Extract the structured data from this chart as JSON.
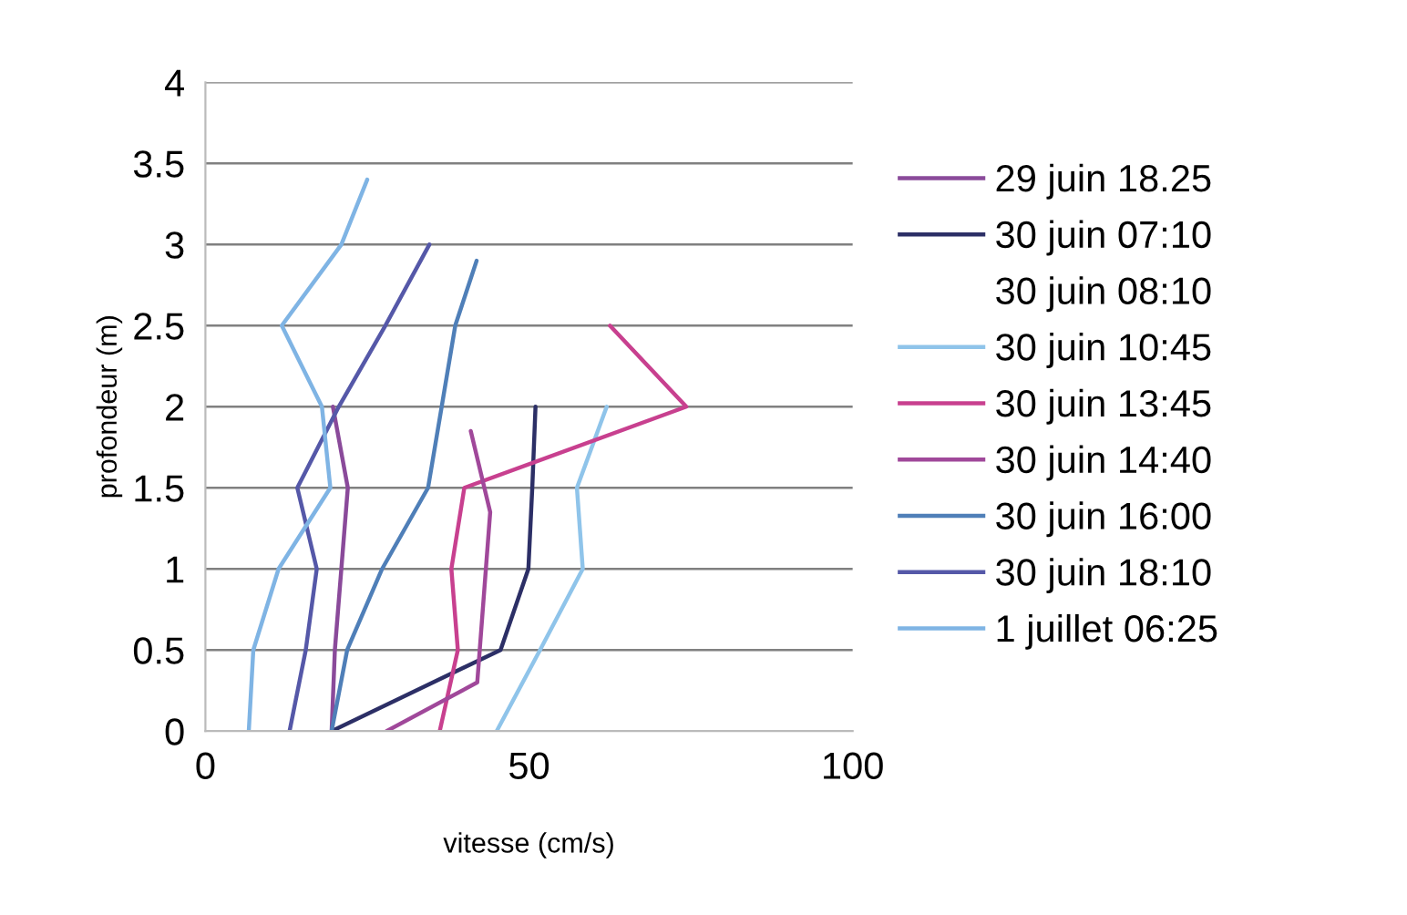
{
  "chart_data": {
    "type": "line",
    "xlabel": "vitesse (cm/s)",
    "ylabel": "profondeur (m)",
    "xlim": [
      0,
      100
    ],
    "xticks": [
      0,
      50,
      100
    ],
    "ylim": [
      0,
      4
    ],
    "yticks": [
      0,
      0.5,
      1,
      1.5,
      2,
      2.5,
      3,
      3.5,
      4
    ],
    "grid": "y",
    "legend": "right",
    "marker": "none",
    "line_style": "solid",
    "series": [
      {
        "name": "29 juin 18.25",
        "color": "#8a4a9a",
        "x": [
          19.5,
          20,
          21,
          22,
          19.7
        ],
        "values": [
          0,
          0.5,
          1,
          1.5,
          2
        ]
      },
      {
        "name": "30 juin 07:10",
        "color": "#2c2f66",
        "x": [
          19.5,
          45.6,
          49.9,
          50.5,
          51
        ],
        "values": [
          0,
          0.5,
          1,
          1.5,
          2
        ]
      },
      {
        "name": "30 juin 08:10"
      },
      {
        "name": "30 juin 10:45",
        "color": "#8fc4ea",
        "x": [
          45,
          51.7,
          58.3,
          57.4,
          62
        ],
        "values": [
          0,
          0.5,
          1,
          1.5,
          2
        ]
      },
      {
        "name": "30 juin 13:45",
        "color": "#c8408f",
        "x": [
          36.2,
          39,
          38,
          40,
          74.3,
          62.5
        ],
        "values": [
          0,
          0.5,
          1,
          1.5,
          2,
          2.5
        ]
      },
      {
        "name": "30 juin 14:40",
        "color": "#a0489a",
        "x": [
          28,
          42,
          44,
          41
        ],
        "values": [
          0,
          0.3,
          1.35,
          1.85
        ]
      },
      {
        "name": "30 juin 16:00",
        "color": "#4f7fb8",
        "x": [
          19.5,
          21.9,
          27.3,
          34.4,
          36.5,
          38.6,
          41.9
        ],
        "values": [
          0,
          0.5,
          1,
          1.5,
          2,
          2.5,
          2.9
        ]
      },
      {
        "name": "30 juin 18:10",
        "color": "#5558a8",
        "x": [
          13,
          15.5,
          17.2,
          14.2,
          20.6,
          27.8,
          34.6
        ],
        "values": [
          0,
          0.5,
          1,
          1.5,
          2,
          2.5,
          3
        ]
      },
      {
        "name": "1 juillet 06:25",
        "color": "#7fb4e4",
        "x": [
          6.7,
          7.4,
          11.3,
          19.3,
          18,
          11.8,
          21,
          25
        ],
        "values": [
          0,
          0.5,
          1,
          1.5,
          2,
          2.5,
          3,
          3.4
        ]
      }
    ]
  }
}
